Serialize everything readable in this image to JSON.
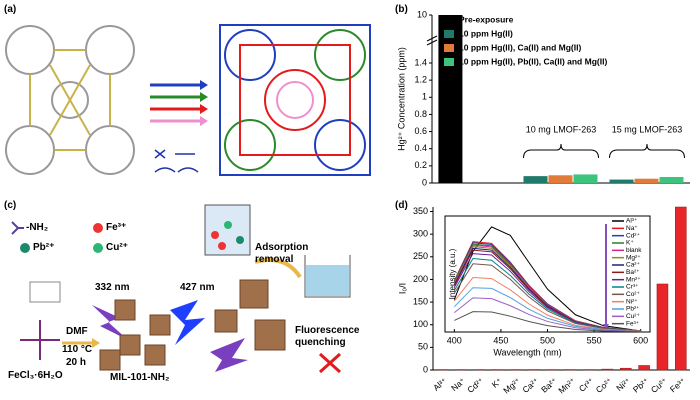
{
  "panels": [
    "(a)",
    "(b)",
    "(c)",
    "(d)"
  ],
  "diagram_c": {
    "amine": "-NH₂",
    "fe": "Fe³⁺",
    "pb": "Pb²⁺",
    "cu": "Cu²⁺",
    "ex1": "332 nm",
    "ex2": "427 nm",
    "adsorption": "Adsorption removal",
    "solvent": "DMF",
    "temp": "110 °C",
    "time": "20 h",
    "precursor": "FeCl₃·6H₂O",
    "product": "MIL-101-NH₂",
    "quench": "Fluorescence quenching"
  },
  "chart_data": [
    {
      "type": "bar",
      "ylabel": "Hg²⁺ Concentration (ppm)",
      "legend": "upper left",
      "categories": [
        null,
        "10 mg LMOF-263",
        "15 mg LMOF-263"
      ],
      "series": [
        {
          "name": "Pre-exposure",
          "color": "#000000",
          "values": [
            10,
            null,
            null
          ]
        },
        {
          "name": "10 ppm Hg(II)",
          "color": "#1f7a6c",
          "values": [
            null,
            0.08,
            0.04
          ]
        },
        {
          "name": "10 ppm Hg(II), Ca(II) and Mg(II)",
          "color": "#e07b39",
          "values": [
            null,
            0.09,
            0.05
          ]
        },
        {
          "name": "10 ppm Hg(II), Pb(II), Ca(II) and Mg(II)",
          "color": "#3cc47c",
          "values": [
            null,
            0.1,
            0.07
          ]
        }
      ],
      "ylim": [
        0,
        10
      ],
      "yticks": [
        0,
        0.2,
        0.4,
        0.6,
        0.8,
        1.0,
        1.2,
        1.4,
        10
      ]
    },
    {
      "type": "bar",
      "ylabel": "I₀/I",
      "color": "#e8262a",
      "categories": [
        "Al³⁺",
        "Na⁺",
        "Cd²⁺",
        "K⁺",
        "Mg²⁺",
        "Ca²⁺",
        "Ba²⁺",
        "Mn²⁺",
        "Cr³⁺",
        "Co²⁺",
        "Ni²⁺",
        "Pb²⁺",
        "Cu²⁺",
        "Fe³⁺"
      ],
      "values": [
        1,
        1,
        1,
        1,
        1,
        1,
        1,
        1,
        1,
        2,
        4,
        10,
        190,
        360
      ],
      "ylim": [
        0,
        360
      ],
      "yticks": [
        0,
        50,
        100,
        150,
        200,
        250,
        300,
        350
      ]
    },
    {
      "type": "line",
      "xlabel": "Wavelength (nm)",
      "ylabel": "Intensity (a.u.)",
      "x": [
        400,
        420,
        440,
        460,
        480,
        500,
        530,
        560,
        600
      ],
      "xlim": [
        390,
        610
      ],
      "xticks": [
        400,
        450,
        500,
        550,
        600
      ],
      "ylim": [
        0,
        330
      ],
      "series": [
        {
          "name": "Al³⁺",
          "color": "#000000",
          "values": [
            92,
            229,
            299,
            275,
            198,
            122,
            49,
            18,
            3
          ]
        },
        {
          "name": "Na⁺",
          "color": "#e41a1c",
          "values": [
            146,
            257,
            252,
            199,
            133,
            80,
            32,
            13,
            3
          ]
        },
        {
          "name": "Cd²⁺",
          "color": "#1f3fbf",
          "values": [
            144,
            254,
            249,
            197,
            131,
            79,
            31,
            13,
            3
          ]
        },
        {
          "name": "K⁺",
          "color": "#2a7a2a",
          "values": [
            142,
            250,
            245,
            194,
            129,
            77,
            31,
            13,
            3
          ]
        },
        {
          "name": "blank",
          "color": "#d6248f",
          "values": [
            140,
            247,
            242,
            191,
            128,
            77,
            31,
            13,
            3
          ]
        },
        {
          "name": "Mg²⁺",
          "color": "#8c8c1a",
          "values": [
            138,
            243,
            238,
            188,
            125,
            75,
            30,
            13,
            3
          ]
        },
        {
          "name": "Ca²⁺",
          "color": "#1a237e",
          "values": [
            135,
            238,
            233,
            184,
            123,
            74,
            29,
            12,
            2
          ]
        },
        {
          "name": "Ba²⁺",
          "color": "#8b1a1a",
          "values": [
            132,
            233,
            228,
            180,
            120,
            72,
            29,
            12,
            2
          ]
        },
        {
          "name": "Mn²⁺",
          "color": "#6a1b9a",
          "values": [
            127,
            223,
            219,
            173,
            115,
            69,
            28,
            12,
            2
          ]
        },
        {
          "name": "Cr³⁺",
          "color": "#00838f",
          "values": [
            118,
            209,
            204,
            161,
            108,
            65,
            26,
            11,
            2
          ]
        },
        {
          "name": "Co²⁺",
          "color": "#795548",
          "values": [
            110,
            194,
            190,
            150,
            100,
            60,
            24,
            10,
            2
          ]
        },
        {
          "name": "Ni²⁺",
          "color": "#f08060",
          "values": [
            88,
            155,
            152,
            120,
            80,
            48,
            19,
            8,
            2
          ]
        },
        {
          "name": "Pb²⁺",
          "color": "#4fa3e0",
          "values": [
            72,
            126,
            124,
            98,
            65,
            39,
            16,
            7,
            1
          ]
        },
        {
          "name": "Cu²⁺",
          "color": "#9c5fc9",
          "values": [
            55,
            97,
            95,
            75,
            50,
            30,
            12,
            5,
            1
          ]
        },
        {
          "name": "Fe³⁺",
          "color": "#555555",
          "values": [
            33,
            58,
            57,
            45,
            30,
            18,
            7,
            3,
            1
          ]
        }
      ]
    }
  ]
}
